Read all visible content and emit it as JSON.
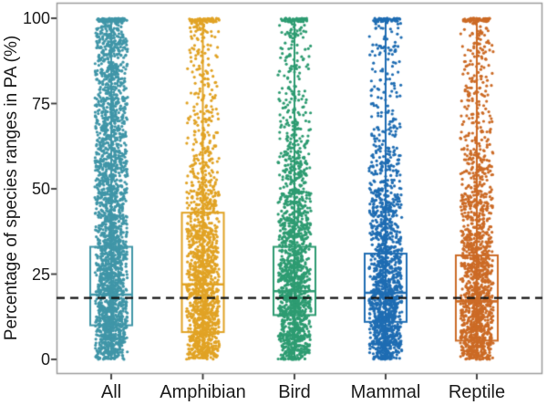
{
  "chart_data": {
    "type": "scatter",
    "subtype": "jittered-strip-with-open-boxplot",
    "title": "",
    "xlabel": "",
    "ylabel": "Percentage of species ranges in PA (%)",
    "ylim": [
      0,
      100
    ],
    "yticks": [
      0,
      25,
      50,
      75,
      100
    ],
    "ytick_labels": [
      "0",
      "25",
      "50",
      "75",
      "100"
    ],
    "categories": [
      "All",
      "Amphibian",
      "Bird",
      "Mammal",
      "Reptile"
    ],
    "grid": false,
    "legend": false,
    "axis_text_color": "#1a1a1a",
    "panel_border_color": "#9c9c9c",
    "tick_mark_color": "#333333",
    "reference_line": {
      "value": 18,
      "orientation": "horizontal",
      "style": "dashed",
      "color": "#111111"
    },
    "series": [
      {
        "name": "All",
        "color": "#4096a8",
        "box": {
          "q1": 10,
          "median": 19,
          "q3": 33,
          "whisker_low": 0,
          "whisker_high": 100
        },
        "points_per_decile": [
          330,
          330,
          300,
          270,
          240,
          210,
          190,
          180,
          170,
          190
        ],
        "points_at_100": 80
      },
      {
        "name": "Amphibian",
        "color": "#e1a325",
        "box": {
          "q1": 8,
          "median": 22,
          "q3": 43,
          "whisker_low": 0,
          "whisker_high": 100
        },
        "points_per_decile": [
          300,
          290,
          250,
          210,
          150,
          90,
          60,
          50,
          45,
          60
        ],
        "points_at_100": 55
      },
      {
        "name": "Bird",
        "color": "#2e9c72",
        "box": {
          "q1": 13,
          "median": 20,
          "q3": 33,
          "whisker_low": 0,
          "whisker_high": 100
        },
        "points_per_decile": [
          290,
          310,
          270,
          220,
          170,
          120,
          75,
          50,
          40,
          50
        ],
        "points_at_100": 50
      },
      {
        "name": "Mammal",
        "color": "#1f6db3",
        "box": {
          "q1": 11,
          "median": 19.5,
          "q3": 31,
          "whisker_low": 0,
          "whisker_high": 100
        },
        "points_per_decile": [
          310,
          310,
          250,
          180,
          150,
          95,
          55,
          35,
          30,
          45
        ],
        "points_at_100": 50
      },
      {
        "name": "Reptile",
        "color": "#cc6b26",
        "box": {
          "q1": 5.5,
          "median": 17,
          "q3": 30.5,
          "whisker_low": 0,
          "whisker_high": 100
        },
        "points_per_decile": [
          320,
          290,
          230,
          170,
          140,
          95,
          65,
          50,
          45,
          55
        ],
        "points_at_100": 55
      }
    ]
  }
}
